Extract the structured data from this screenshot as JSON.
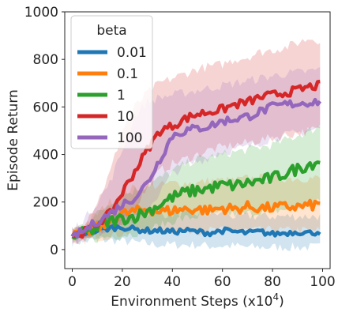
{
  "chart_data": {
    "type": "line",
    "xlabel": "Environment Steps (x10",
    "xlabel_exponent": "4",
    "xlabel_close": ")",
    "ylabel": "Episode Return",
    "xlim": [
      -3,
      103
    ],
    "ylim": [
      -80,
      1000
    ],
    "xticks": [
      "0",
      "20",
      "40",
      "60",
      "80",
      "100"
    ],
    "yticks": [
      "0",
      "200",
      "400",
      "600",
      "800",
      "1000"
    ],
    "grid": false,
    "legend": {
      "title": "beta",
      "placement": "top-left"
    },
    "shaded_bands": true,
    "x": [
      0,
      5,
      10,
      15,
      20,
      25,
      30,
      35,
      40,
      45,
      50,
      55,
      60,
      65,
      70,
      75,
      80,
      85,
      90,
      95,
      99
    ],
    "series": [
      {
        "name": "0.01",
        "color": "#1f77b4",
        "values": [
          55,
          70,
          80,
          90,
          95,
          85,
          80,
          80,
          75,
          80,
          75,
          70,
          80,
          75,
          70,
          75,
          65,
          70,
          75,
          70,
          75
        ],
        "lower": [
          30,
          35,
          40,
          40,
          35,
          30,
          25,
          20,
          20,
          20,
          20,
          15,
          15,
          15,
          10,
          10,
          10,
          10,
          10,
          10,
          10
        ],
        "upper": [
          85,
          100,
          120,
          140,
          160,
          150,
          150,
          150,
          150,
          150,
          150,
          150,
          150,
          140,
          140,
          140,
          140,
          140,
          140,
          140,
          140
        ]
      },
      {
        "name": "0.1",
        "color": "#ff7f0e",
        "values": [
          55,
          70,
          90,
          120,
          150,
          160,
          170,
          160,
          165,
          170,
          170,
          165,
          175,
          170,
          180,
          175,
          175,
          180,
          180,
          185,
          190
        ],
        "lower": [
          35,
          40,
          50,
          60,
          70,
          75,
          80,
          80,
          80,
          80,
          80,
          80,
          80,
          80,
          80,
          80,
          80,
          80,
          80,
          80,
          80
        ],
        "upper": [
          80,
          110,
          150,
          200,
          240,
          260,
          270,
          270,
          280,
          280,
          280,
          290,
          290,
          290,
          300,
          300,
          300,
          300,
          300,
          300,
          300
        ]
      },
      {
        "name": "1",
        "color": "#2ca02c",
        "values": [
          55,
          70,
          90,
          120,
          130,
          140,
          160,
          190,
          220,
          240,
          250,
          260,
          270,
          270,
          280,
          290,
          300,
          320,
          340,
          360,
          375
        ],
        "lower": [
          35,
          40,
          45,
          55,
          60,
          70,
          80,
          100,
          120,
          130,
          140,
          140,
          150,
          150,
          150,
          160,
          160,
          170,
          180,
          190,
          200
        ],
        "upper": [
          80,
          110,
          150,
          200,
          230,
          250,
          270,
          300,
          330,
          360,
          380,
          390,
          400,
          410,
          420,
          430,
          440,
          460,
          480,
          500,
          520
        ]
      },
      {
        "name": "10",
        "color": "#d62728",
        "values": [
          55,
          75,
          110,
          150,
          240,
          330,
          420,
          500,
          520,
          550,
          570,
          580,
          590,
          610,
          620,
          640,
          650,
          660,
          670,
          685,
          690
        ],
        "lower": [
          35,
          45,
          60,
          80,
          120,
          180,
          260,
          330,
          360,
          380,
          400,
          420,
          430,
          440,
          450,
          460,
          470,
          480,
          490,
          500,
          510
        ],
        "upper": [
          80,
          120,
          200,
          320,
          500,
          600,
          660,
          700,
          720,
          740,
          760,
          770,
          780,
          800,
          810,
          830,
          840,
          850,
          870,
          890,
          880
        ]
      },
      {
        "name": "100",
        "color": "#9467bd",
        "values": [
          55,
          80,
          120,
          150,
          190,
          220,
          280,
          380,
          480,
          500,
          510,
          520,
          540,
          550,
          560,
          580,
          600,
          610,
          615,
          620,
          625
        ],
        "lower": [
          35,
          50,
          70,
          90,
          110,
          130,
          170,
          240,
          320,
          350,
          370,
          390,
          410,
          420,
          430,
          450,
          470,
          480,
          490,
          500,
          510
        ],
        "upper": [
          80,
          130,
          200,
          280,
          420,
          560,
          620,
          640,
          650,
          660,
          670,
          680,
          690,
          700,
          710,
          720,
          730,
          740,
          745,
          750,
          760
        ]
      }
    ]
  }
}
